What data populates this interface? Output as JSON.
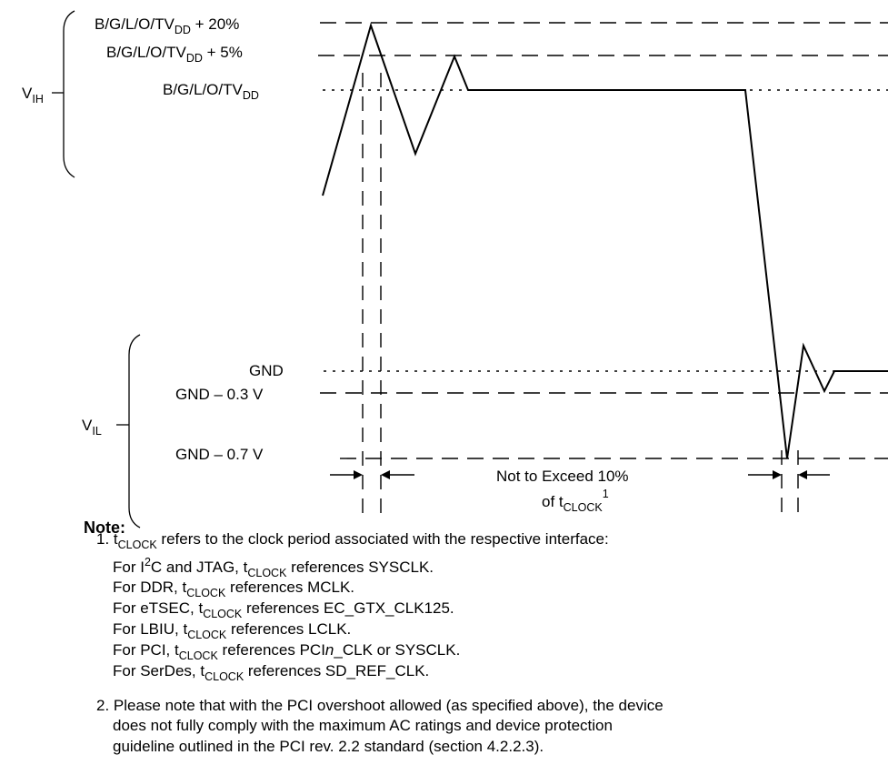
{
  "levels": {
    "vdd_plus_20": {
      "base": "B/G/L/O/TV",
      "sub": "DD",
      "suffix": " + 20%"
    },
    "vdd_plus_5": {
      "base": "B/G/L/O/TV",
      "sub": "DD",
      "suffix": " + 5%"
    },
    "vdd": {
      "base": "B/G/L/O/TV",
      "sub": "DD",
      "suffix": ""
    },
    "gnd": "GND",
    "gnd_minus_03": "GND – 0.3 V",
    "gnd_minus_07": "GND – 0.7 V"
  },
  "vih": {
    "base": "V",
    "sub": "IH"
  },
  "vil": {
    "base": "V",
    "sub": "IL"
  },
  "limit": {
    "line1": "Not to Exceed 10%",
    "line2_base": "of t",
    "line2_sub": "CLOCK",
    "line2_sup": "1"
  },
  "note": {
    "title": "Note:",
    "item1": {
      "prefix": "1. t",
      "sub": "CLOCK",
      "rest": " refers to the clock period associated with the respective interface:"
    },
    "refs": [
      {
        "pre": "For I",
        "sup": "2",
        "mid": "C and JTAG, t",
        "sub": "CLOCK",
        "post": " references SYSCLK."
      },
      {
        "pre": "For DDR, t",
        "sub": "CLOCK",
        "post": " references MCLK."
      },
      {
        "pre": "For eTSEC, t",
        "sub": "CLOCK",
        "post": " references EC_GTX_CLK125."
      },
      {
        "pre": "For LBIU, t",
        "sub": "CLOCK",
        "post": " references LCLK."
      },
      {
        "pre": "For PCI, t",
        "sub": "CLOCK",
        "post": " references PCI",
        "italic": "n",
        "post2": "_CLK or SYSCLK."
      },
      {
        "pre": "For SerDes, t",
        "sub": "CLOCK",
        "post": " references SD_REF_CLK."
      }
    ],
    "item2": [
      "2. Please note that with the PCI overshoot allowed (as specified above), the device",
      "does not fully comply with the maximum AC ratings and device protection",
      "guideline outlined in the PCI rev. 2.2 standard (section 4.2.2.3)."
    ]
  }
}
